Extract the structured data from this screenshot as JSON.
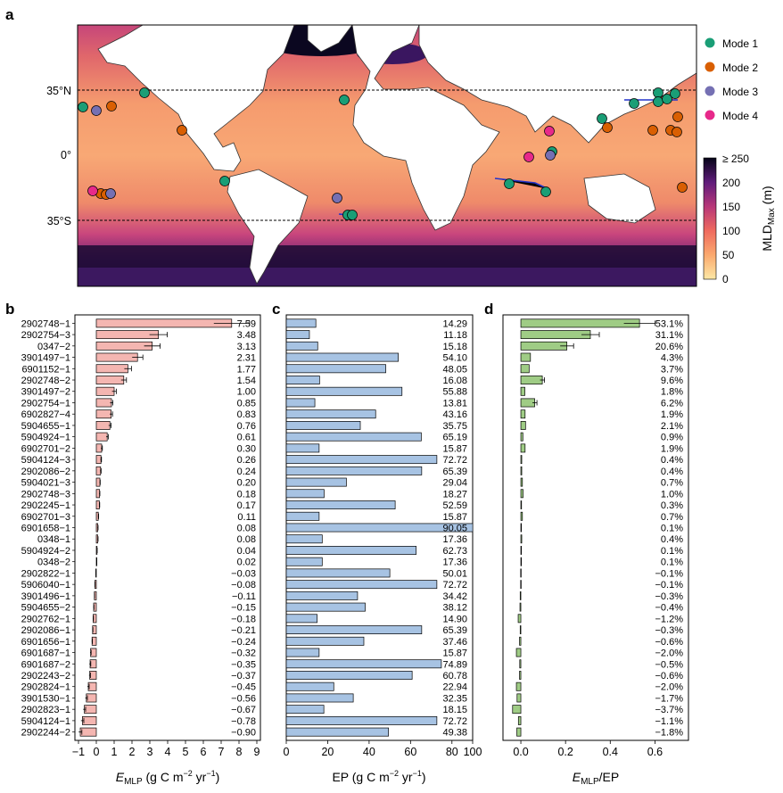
{
  "panel_letters": {
    "a": "a",
    "b": "b",
    "c": "c",
    "d": "d"
  },
  "map": {
    "lat_labels": [
      "35°N",
      "0°",
      "35°S"
    ],
    "legend": [
      {
        "label": "Mode 1",
        "color": "#1a9e76"
      },
      {
        "label": "Mode 2",
        "color": "#d95f02"
      },
      {
        "label": "Mode 3",
        "color": "#7570b3"
      },
      {
        "label": "Mode 4",
        "color": "#e7298a"
      }
    ],
    "colorbar": {
      "label_main": "MLD",
      "label_sub": "Max",
      "label_unit": " (m)",
      "ticks": [
        "≥ 250",
        "200",
        "150",
        "100",
        "50",
        "0"
      ]
    }
  },
  "chart_data": [
    {
      "type": "bar",
      "orientation": "horizontal",
      "panel": "b",
      "xlabel_main": "E",
      "xlabel_sub": "MLP",
      "xlabel_rest": " (g C m",
      "xlabel_exp": "−2",
      "xlabel_rest2": " yr",
      "xlabel_exp2": "−1",
      "xlabel_end": ")",
      "xlim": [
        -1.2,
        9.2
      ],
      "xticks": [
        -1,
        0,
        1,
        2,
        3,
        4,
        5,
        6,
        7,
        8,
        9
      ],
      "xtick_labels": [
        "−1",
        "0",
        "1",
        "2",
        "3",
        "4",
        "5",
        "6",
        "7",
        "8",
        "9"
      ],
      "categories": [
        "2902748−1",
        "2902754−3",
        "0347−2",
        "3901497−1",
        "6901152−1",
        "2902748−2",
        "3901497−2",
        "2902754−1",
        "6902827−4",
        "5904655−1",
        "5904924−1",
        "6902701−2",
        "5904124−3",
        "2902086−2",
        "5904021−3",
        "2902748−3",
        "2902245−1",
        "6902701−3",
        "6901658−1",
        "0348−1",
        "5904924−2",
        "0348−2",
        "2902822−1",
        "5906040−1",
        "3901496−1",
        "5904655−2",
        "2902762−1",
        "2902086−1",
        "6901656−1",
        "6901687−1",
        "6901687−2",
        "2902243−2",
        "2902824−1",
        "3901530−1",
        "2902823−1",
        "5904124−1",
        "2902244−2"
      ],
      "values": [
        7.59,
        3.48,
        3.13,
        2.31,
        1.77,
        1.54,
        1.0,
        0.85,
        0.83,
        0.76,
        0.61,
        0.3,
        0.26,
        0.24,
        0.2,
        0.18,
        0.17,
        0.11,
        0.08,
        0.08,
        0.04,
        0.02,
        -0.03,
        -0.08,
        -0.11,
        -0.15,
        -0.18,
        -0.21,
        -0.24,
        -0.32,
        -0.35,
        -0.37,
        -0.45,
        -0.56,
        -0.67,
        -0.78,
        -0.9
      ],
      "value_labels": [
        "7.59",
        "3.48",
        "3.13",
        "2.31",
        "1.77",
        "1.54",
        "1.00",
        "0.85",
        "0.83",
        "0.76",
        "0.61",
        "0.30",
        "0.26",
        "0.24",
        "0.20",
        "0.18",
        "0.17",
        "0.11",
        "0.08",
        "0.08",
        "0.04",
        "0.02",
        "−0.03",
        "−0.08",
        "−0.11",
        "−0.15",
        "−0.18",
        "−0.21",
        "−0.24",
        "−0.32",
        "−0.35",
        "−0.37",
        "−0.45",
        "−0.56",
        "−0.67",
        "−0.78",
        "−0.90"
      ],
      "errors": [
        1.0,
        0.5,
        0.45,
        0.3,
        0.2,
        0.15,
        0.12,
        0.08,
        0.08,
        0.07,
        0.06,
        0.04,
        0.03,
        0.03,
        0.02,
        0.02,
        0.02,
        0.02,
        0.02,
        0.02,
        0.01,
        0.01,
        0.01,
        0.01,
        0.01,
        0.02,
        0.02,
        0.02,
        0.02,
        0.03,
        0.04,
        0.04,
        0.05,
        0.06,
        0.07,
        0.08,
        0.09
      ],
      "bar_color": "#f4b6b1"
    },
    {
      "type": "bar",
      "orientation": "horizontal",
      "panel": "c",
      "xlabel": "EP (g C m",
      "xlabel_exp": "−2",
      "xlabel_rest": " yr",
      "xlabel_exp2": "−1",
      "xlabel_end": ")",
      "xlim": [
        0,
        90
      ],
      "xticks": [
        0,
        20,
        40,
        60,
        80,
        100
      ],
      "xtick_labels": [
        "0",
        "20",
        "40",
        "60",
        "80",
        "100"
      ],
      "values": [
        14.29,
        11.18,
        15.18,
        54.1,
        48.05,
        16.08,
        55.88,
        13.81,
        43.16,
        35.75,
        65.19,
        15.87,
        72.72,
        65.39,
        29.04,
        18.27,
        52.59,
        15.87,
        90.05,
        17.36,
        62.73,
        17.36,
        50.01,
        72.72,
        34.42,
        38.12,
        14.9,
        65.39,
        37.46,
        15.87,
        74.89,
        60.78,
        22.94,
        32.35,
        18.15,
        72.72,
        49.38
      ],
      "value_labels": [
        "14.29",
        "11.18",
        "15.18",
        "54.10",
        "48.05",
        "16.08",
        "55.88",
        "13.81",
        "43.16",
        "35.75",
        "65.19",
        "15.87",
        "72.72",
        "65.39",
        "29.04",
        "18.27",
        "52.59",
        "15.87",
        "90.05",
        "17.36",
        "62.73",
        "17.36",
        "50.01",
        "72.72",
        "34.42",
        "38.12",
        "14.90",
        "65.39",
        "37.46",
        "15.87",
        "74.89",
        "60.78",
        "22.94",
        "32.35",
        "18.15",
        "72.72",
        "49.38"
      ],
      "bar_color": "#a7c3e3"
    },
    {
      "type": "bar",
      "orientation": "horizontal",
      "panel": "d",
      "xlabel_main": "E",
      "xlabel_sub": "MLP",
      "xlabel_rest": "/EP",
      "xlim": [
        -0.08,
        0.75
      ],
      "xticks": [
        0.0,
        0.2,
        0.4,
        0.6
      ],
      "xtick_labels": [
        "0.0",
        "0.2",
        "0.4",
        "0.6"
      ],
      "values": [
        0.531,
        0.311,
        0.206,
        0.043,
        0.037,
        0.096,
        0.018,
        0.062,
        0.019,
        0.021,
        0.009,
        0.019,
        0.004,
        0.004,
        0.007,
        0.01,
        0.003,
        0.007,
        0.001,
        0.004,
        0.001,
        0.001,
        -0.001,
        -0.001,
        -0.003,
        -0.004,
        -0.012,
        -0.003,
        -0.006,
        -0.02,
        -0.005,
        -0.006,
        -0.02,
        -0.017,
        -0.037,
        -0.011,
        -0.018
      ],
      "value_labels": [
        "53.1%",
        "31.1%",
        "20.6%",
        "4.3%",
        "3.7%",
        "9.6%",
        "1.8%",
        "6.2%",
        "1.9%",
        "2.1%",
        "0.9%",
        "1.9%",
        "0.4%",
        "0.4%",
        "0.7%",
        "1.0%",
        "0.3%",
        "0.7%",
        "0.1%",
        "0.4%",
        "0.1%",
        "0.1%",
        "−0.1%",
        "−0.1%",
        "−0.3%",
        "−0.4%",
        "−1.2%",
        "−0.3%",
        "−0.6%",
        "−2.0%",
        "−0.5%",
        "−0.6%",
        "−2.0%",
        "−1.7%",
        "−3.7%",
        "−1.1%",
        "−1.8%"
      ],
      "errors": [
        0.07,
        0.04,
        0.03,
        0.0,
        0.0,
        0.01,
        0.0,
        0.01,
        0.0,
        0.0,
        0.0,
        0.0,
        0.0,
        0.0,
        0.0,
        0.0,
        0.0,
        0.0,
        0.0,
        0.0,
        0.0,
        0.0,
        0.0,
        0.0,
        0.0,
        0.0,
        0.0,
        0.0,
        0.0,
        0.0,
        0.0,
        0.0,
        0.0,
        0.0,
        0.0,
        0.0,
        0.0
      ],
      "bar_color": "#9fcc85"
    }
  ]
}
